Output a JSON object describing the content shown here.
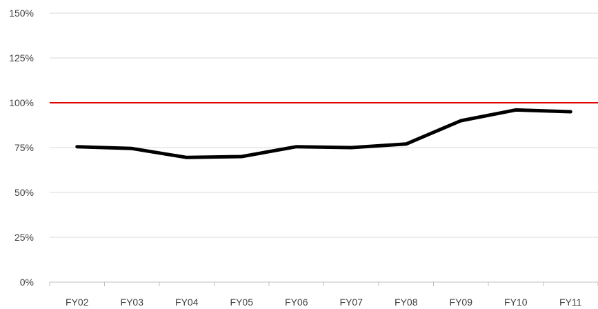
{
  "chart_data": {
    "type": "line",
    "categories": [
      "FY02",
      "FY03",
      "FY04",
      "FY05",
      "FY06",
      "FY07",
      "FY08",
      "FY09",
      "FY10",
      "FY11"
    ],
    "series": [
      {
        "values": [
          75.5,
          74.5,
          69.5,
          70,
          75.5,
          75,
          77,
          90,
          96,
          95
        ],
        "color": "#000000"
      }
    ],
    "y_ticks": [
      "0%",
      "25%",
      "50%",
      "75%",
      "100%",
      "125%",
      "150%"
    ],
    "y_tick_values": [
      0,
      25,
      50,
      75,
      100,
      125,
      150
    ],
    "ylim": [
      0,
      150
    ],
    "reference_line": {
      "value": 100,
      "color": "#e00000"
    },
    "grid": true,
    "gridline_color": "#d9d9d9",
    "axis_color": "#bfbfbf",
    "legend": "none"
  }
}
